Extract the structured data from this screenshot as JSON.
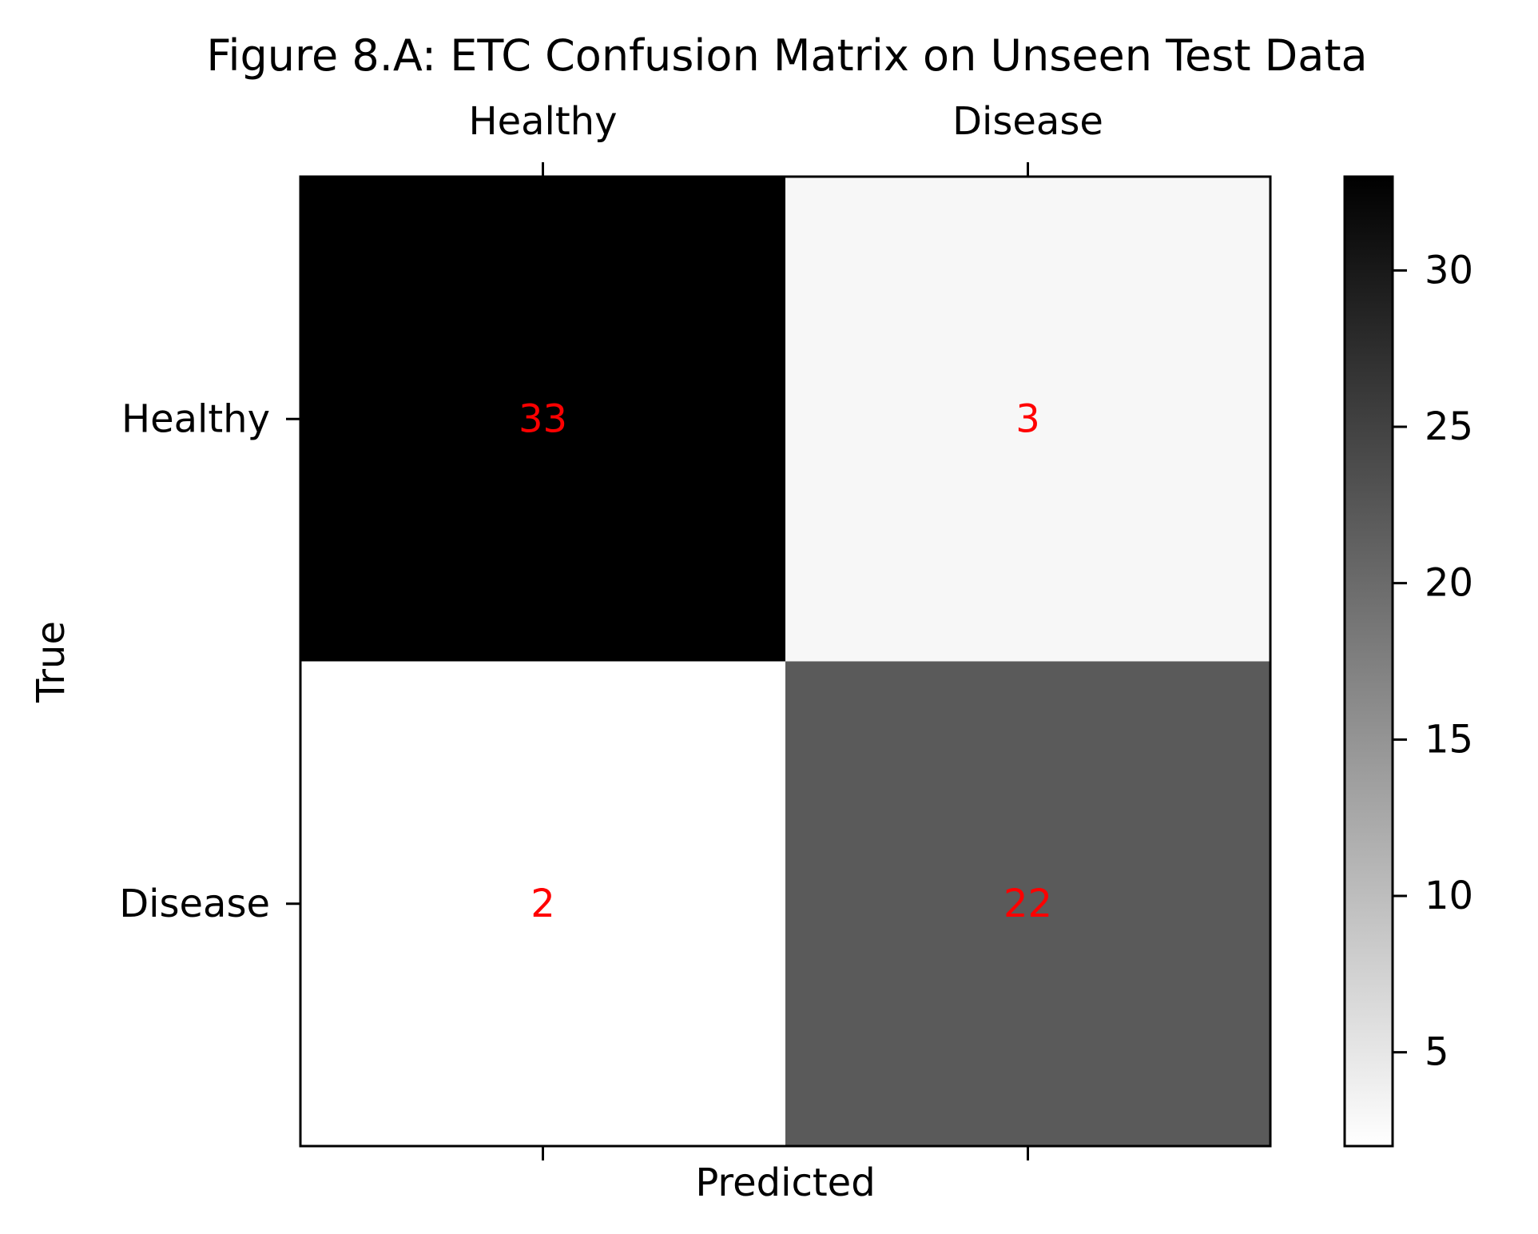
{
  "chart_data": {
    "type": "heatmap",
    "title": "Figure 8.A: ETC Confusion Matrix on Unseen Test Data",
    "xlabel": "Predicted",
    "ylabel": "True",
    "x_categories": [
      "Healthy",
      "Disease"
    ],
    "y_categories": [
      "Healthy",
      "Disease"
    ],
    "values": [
      [
        33,
        3
      ],
      [
        2,
        22
      ]
    ],
    "annotation_color": "#ff0000",
    "colormap": "gray_r",
    "vmin": 2,
    "vmax": 33,
    "colorbar_ticks": [
      5,
      10,
      15,
      20,
      25,
      30
    ],
    "colorbar_tick_labels": [
      "5",
      "10",
      "15",
      "20",
      "25",
      "30"
    ]
  }
}
